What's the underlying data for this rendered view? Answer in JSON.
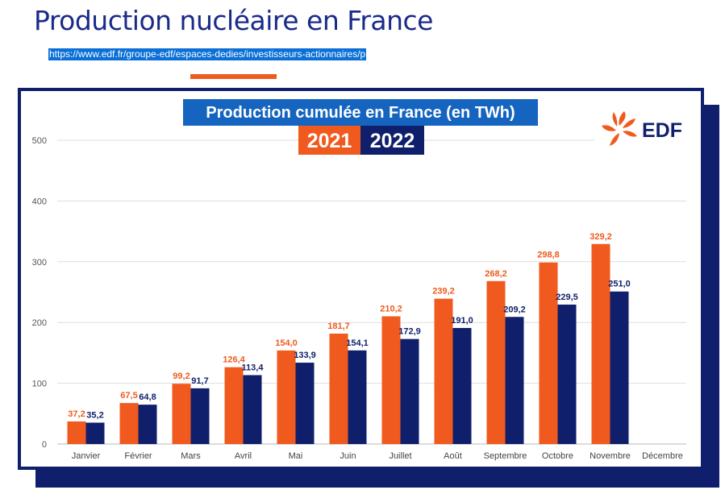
{
  "page": {
    "title": "Production nucléaire en France",
    "source_url": "https://www.edf.fr/groupe-edf/espaces-dedies/investisseurs-actionnaires/p"
  },
  "logo": {
    "text": "EDF",
    "icon": "edf-sun-swirl-icon"
  },
  "colors": {
    "accent": "#f05a1e",
    "navy": "#0f1f6b",
    "title_banner": "#1565c0"
  },
  "chart_data": {
    "type": "bar",
    "title": "Production cumulée en France (en TWh)",
    "categories": [
      "Janvier",
      "Février",
      "Mars",
      "Avril",
      "Mai",
      "Juin",
      "Juillet",
      "Août",
      "Septembre",
      "Octobre",
      "Novembre",
      "Décembre"
    ],
    "series": [
      {
        "name": "2021",
        "color": "#f05a1e",
        "values": [
          37.2,
          67.5,
          99.2,
          126.4,
          154.0,
          181.7,
          210.2,
          239.2,
          268.2,
          298.8,
          329.2,
          null
        ],
        "labels": [
          "37,2",
          "67,5",
          "99,2",
          "126,4",
          "154,0",
          "181,7",
          "210,2",
          "239,2",
          "268,2",
          "298,8",
          "329,2",
          ""
        ]
      },
      {
        "name": "2022",
        "color": "#0f1f6b",
        "values": [
          35.2,
          64.8,
          91.7,
          113.4,
          133.9,
          154.1,
          172.9,
          191.0,
          209.2,
          229.5,
          251.0,
          null
        ],
        "labels": [
          "35,2",
          "64,8",
          "91,7",
          "113,4",
          "133,9",
          "154,1",
          "172,9",
          "191,0",
          "209,2",
          "229,5",
          "251,0",
          ""
        ]
      }
    ],
    "yticks": [
      0,
      100,
      200,
      300,
      400,
      500
    ],
    "ylim": [
      0,
      500
    ],
    "grid": true,
    "xlabel": "",
    "ylabel": ""
  }
}
